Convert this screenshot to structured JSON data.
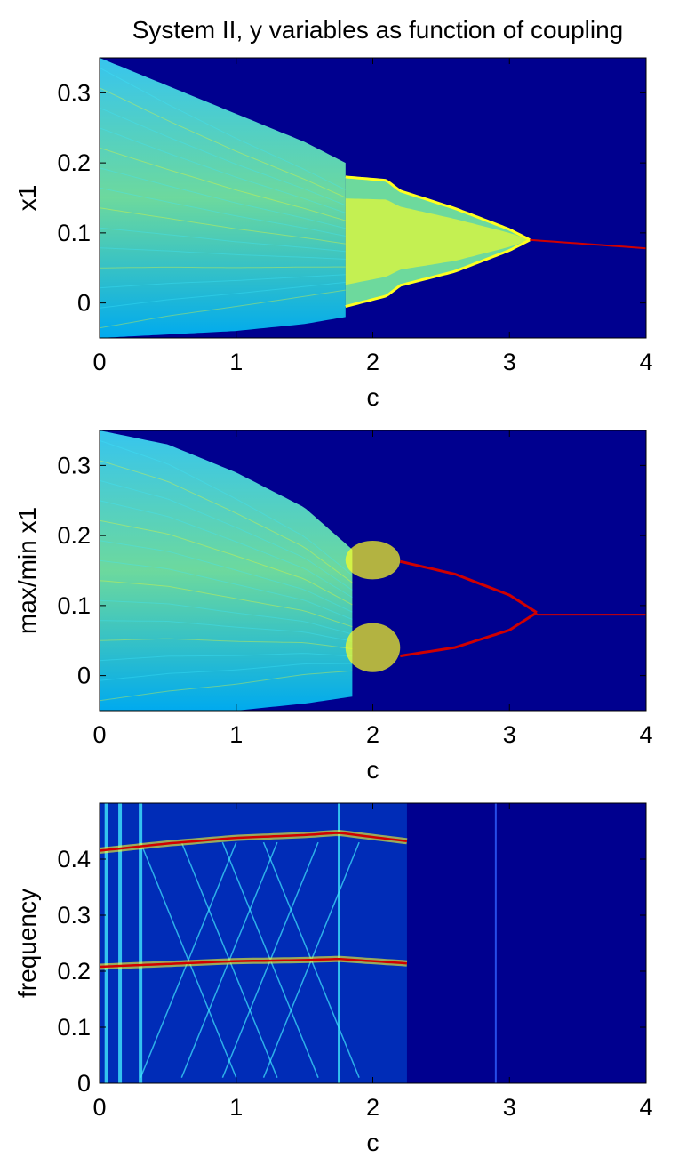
{
  "figure": {
    "title": "System II, y variables as function of coupling"
  },
  "colors": {
    "background": "#00008f",
    "cyan": "#00c8ff",
    "cyan_light": "#40e8ff",
    "green": "#80ffa0",
    "yellow": "#ffff20",
    "orange": "#ffa010",
    "red": "#d00000"
  },
  "chart_data": [
    {
      "type": "heatmap",
      "title": "",
      "xlabel": "c",
      "ylabel": "x1",
      "xlim": [
        0,
        4
      ],
      "ylim": [
        -0.05,
        0.35
      ],
      "xticks": [
        0,
        1,
        2,
        3,
        4
      ],
      "yticks": [
        0,
        0.1,
        0.2,
        0.3
      ],
      "grid": false,
      "features": {
        "chaotic_band": {
          "c": [
            0,
            0.5,
            1.0,
            1.5,
            1.8
          ],
          "upper": [
            0.35,
            0.31,
            0.27,
            0.23,
            0.2
          ],
          "lower": [
            -0.05,
            -0.045,
            -0.04,
            -0.03,
            -0.02
          ]
        },
        "bulb": {
          "c": [
            1.8,
            2.1,
            2.2,
            2.6,
            3.0,
            3.15
          ],
          "upper": [
            0.18,
            0.175,
            0.16,
            0.135,
            0.105,
            0.09
          ],
          "lower": [
            -0.005,
            0.01,
            0.025,
            0.045,
            0.075,
            0.09
          ]
        },
        "fixed_line": {
          "c": [
            3.15,
            4.0
          ],
          "y": [
            0.09,
            0.078
          ]
        }
      }
    },
    {
      "type": "heatmap",
      "title": "",
      "xlabel": "c",
      "ylabel": "max/min x1",
      "xlim": [
        0,
        4
      ],
      "ylim": [
        -0.05,
        0.35
      ],
      "xticks": [
        0,
        1,
        2,
        3,
        4
      ],
      "yticks": [
        0,
        0.1,
        0.2,
        0.3
      ],
      "grid": false,
      "features": {
        "chaotic_band": {
          "c": [
            0,
            0.5,
            1.0,
            1.5,
            1.85
          ],
          "upper": [
            0.35,
            0.33,
            0.29,
            0.24,
            0.18
          ],
          "lower": [
            -0.05,
            -0.05,
            -0.05,
            -0.04,
            -0.03
          ]
        },
        "upper_branch": {
          "c": [
            2.2,
            2.6,
            3.0,
            3.2
          ],
          "y": [
            0.163,
            0.145,
            0.115,
            0.09
          ]
        },
        "lower_branch": {
          "c": [
            2.2,
            2.6,
            3.0,
            3.2
          ],
          "y": [
            0.028,
            0.04,
            0.065,
            0.09
          ]
        },
        "fixed_line": {
          "c": [
            3.2,
            4.0
          ],
          "y": [
            0.087,
            0.087
          ]
        }
      }
    },
    {
      "type": "heatmap",
      "title": "",
      "xlabel": "c",
      "ylabel": "frequency",
      "xlim": [
        0,
        4
      ],
      "ylim": [
        0,
        0.5
      ],
      "xticks": [
        0,
        1,
        2,
        3,
        4
      ],
      "yticks": [
        0,
        0.1,
        0.2,
        0.3,
        0.4
      ],
      "grid": false,
      "features": {
        "upper_ridge": {
          "c": [
            0,
            0.5,
            1.0,
            1.5,
            1.75,
            2.25
          ],
          "y": [
            0.415,
            0.428,
            0.438,
            0.443,
            0.447,
            0.432
          ]
        },
        "lower_ridge": {
          "c": [
            0,
            0.5,
            1.0,
            1.5,
            1.75,
            2.25
          ],
          "y": [
            0.208,
            0.213,
            0.218,
            0.22,
            0.222,
            0.214
          ]
        },
        "crossing_lines": {
          "c_start": [
            0.3,
            0.6,
            0.9,
            1.2
          ],
          "c_end": [
            1.0,
            1.3,
            1.6,
            1.9
          ]
        },
        "vertical_lines": {
          "c": [
            0.05,
            0.15,
            0.3,
            1.75,
            2.9
          ]
        }
      }
    }
  ]
}
